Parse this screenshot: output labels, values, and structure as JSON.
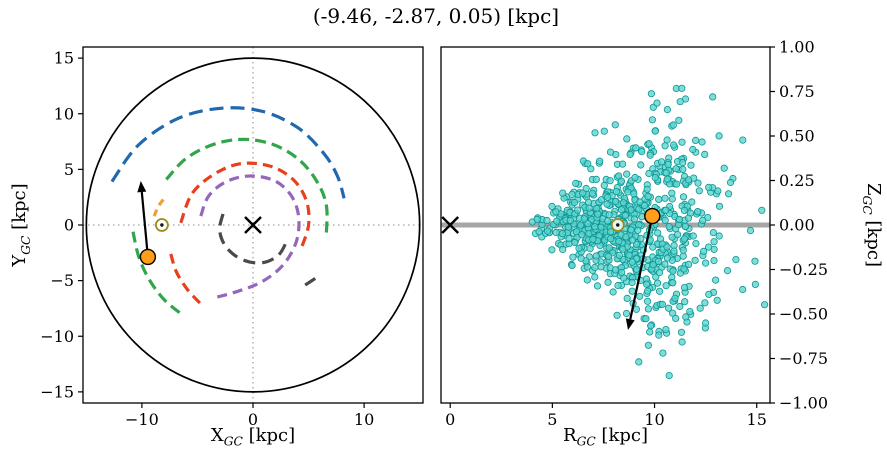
{
  "title": "(-9.46, -2.87, 0.05) [kpc]",
  "axes": {
    "left": {
      "xlabel": {
        "main": "X",
        "sub": "GC",
        "unit": " [kpc]"
      },
      "ylabel": {
        "main": "Y",
        "sub": "GC",
        "unit": " [kpc]"
      }
    },
    "right": {
      "xlabel": {
        "main": "R",
        "sub": "GC",
        "unit": " [kpc]"
      },
      "ylabel": {
        "main": "Z",
        "sub": "GC",
        "unit": " [kpc]"
      }
    }
  },
  "chart_data": [
    {
      "type": "scatter",
      "name": "galactic-plane-top-view",
      "xlabel": "X_GC [kpc]",
      "ylabel": "Y_GC [kpc]",
      "xlim": [
        -15.3,
        15.3
      ],
      "ylim": [
        -16,
        16
      ],
      "xticks": [
        -10,
        0,
        10
      ],
      "yticks": [
        -15,
        -10,
        -5,
        0,
        5,
        10,
        15
      ],
      "tick_decimals": 0,
      "grid": "dotted zero-crosshair",
      "crosshair_color": "#8a8a8a",
      "boundary_circle": {
        "cx": 0,
        "cy": 0,
        "r": 15,
        "color": "#000000"
      },
      "spiral_arms": [
        {
          "name": "outer-arm",
          "color": "#2268ae",
          "dash": [
            14,
            7
          ],
          "width": 3.2,
          "points": [
            [
              -12.7,
              3.9
            ],
            [
              -10.3,
              7.2
            ],
            [
              -6.7,
              9.6
            ],
            [
              -2.8,
              10.5
            ],
            [
              0.9,
              10.2
            ],
            [
              4.1,
              8.7
            ],
            [
              6.4,
              6.4
            ],
            [
              7.6,
              4.4
            ],
            [
              8.2,
              2.4
            ]
          ]
        },
        {
          "name": "perseus-arm",
          "color": "#2fa64a",
          "dash": [
            11,
            6
          ],
          "width": 3.2,
          "points": [
            [
              -7.8,
              4.1
            ],
            [
              -6.0,
              6.0
            ],
            [
              -3.4,
              7.3
            ],
            [
              -0.7,
              7.7
            ],
            [
              1.9,
              7.2
            ],
            [
              4.1,
              5.9
            ],
            [
              5.7,
              4.0
            ],
            [
              6.6,
              1.8
            ],
            [
              6.6,
              -0.9
            ]
          ]
        },
        {
          "name": "perseus-arm-south",
          "color": "#2fa64a",
          "dash": [
            11,
            6
          ],
          "width": 3.2,
          "points": [
            [
              -10.8,
              -0.6
            ],
            [
              -10.3,
              -2.8
            ],
            [
              -9.4,
              -4.8
            ],
            [
              -8.1,
              -6.6
            ],
            [
              -6.6,
              -7.9
            ]
          ]
        },
        {
          "name": "sagittarius-arm",
          "color": "#e8401c",
          "dash": [
            10,
            6
          ],
          "width": 3.2,
          "points": [
            [
              -6.5,
              0.2
            ],
            [
              -5.5,
              2.8
            ],
            [
              -3.6,
              4.5
            ],
            [
              -1.2,
              5.5
            ],
            [
              1.5,
              5.3
            ],
            [
              3.6,
              4.1
            ],
            [
              4.8,
              2.2
            ],
            [
              5.0,
              0.0
            ],
            [
              4.3,
              -2.2
            ]
          ]
        },
        {
          "name": "sagittarius-arm-south",
          "color": "#e8401c",
          "dash": [
            10,
            6
          ],
          "width": 3.2,
          "points": [
            [
              -7.4,
              -2.6
            ],
            [
              -6.9,
              -4.2
            ],
            [
              -5.9,
              -5.8
            ],
            [
              -4.6,
              -7.2
            ]
          ]
        },
        {
          "name": "scutum-arm",
          "color": "#9467bd",
          "dash": [
            10,
            6
          ],
          "width": 3.2,
          "points": [
            [
              -4.7,
              0.8
            ],
            [
              -4.0,
              2.6
            ],
            [
              -2.4,
              3.9
            ],
            [
              -0.3,
              4.4
            ],
            [
              1.9,
              4.0
            ],
            [
              3.4,
              2.7
            ],
            [
              4.1,
              0.8
            ],
            [
              3.9,
              -1.5
            ],
            [
              2.7,
              -3.6
            ],
            [
              0.8,
              -5.1
            ],
            [
              -1.5,
              -6.0
            ],
            [
              -3.3,
              -6.5
            ]
          ]
        },
        {
          "name": "norma-arm",
          "color": "#4a4a4a",
          "dash": [
            12,
            7
          ],
          "width": 3.2,
          "points": [
            [
              -2.7,
              1.0
            ],
            [
              -3.0,
              -0.5
            ],
            [
              -2.4,
              -2.0
            ],
            [
              -1.0,
              -3.1
            ],
            [
              0.8,
              -3.4
            ],
            [
              2.3,
              -2.7
            ],
            [
              3.1,
              -1.3
            ]
          ]
        },
        {
          "name": "norma-arm-segment",
          "color": "#4a4a4a",
          "dash": [
            12,
            7
          ],
          "width": 3.2,
          "points": [
            [
              4.7,
              -5.4
            ],
            [
              5.9,
              -4.6
            ]
          ]
        },
        {
          "name": "local-arm",
          "color": "#f0a030",
          "dash": [
            7,
            5
          ],
          "width": 3.2,
          "points": [
            [
              -8.9,
              0.8
            ],
            [
              -8.5,
              1.7
            ],
            [
              -7.9,
              2.5
            ]
          ]
        }
      ],
      "galactic_center_marker": {
        "x": 0,
        "y": 0,
        "symbol": "x"
      },
      "sun_marker": {
        "x": -8.2,
        "y": 0,
        "symbol": "odot",
        "ring_color": "#9c8c1e"
      },
      "cluster_marker": {
        "x": -9.46,
        "y": -2.87,
        "color": "#ff9e1b"
      },
      "velocity_arrow": {
        "x1": -9.46,
        "y1": -2.87,
        "x2": -10.1,
        "y2": 3.95
      }
    },
    {
      "type": "scatter",
      "name": "radius-vs-height-view",
      "xlabel": "R_GC [kpc]",
      "ylabel": "Z_GC [kpc]",
      "xlim": [
        -0.45,
        15.65
      ],
      "ylim": [
        -1.0,
        1.0
      ],
      "xticks": [
        0,
        5,
        10,
        15
      ],
      "yticks": [
        1.0,
        0.75,
        0.5,
        0.25,
        0.0,
        -0.25,
        -0.5,
        -0.75,
        -1.0
      ],
      "x_tick_decimals": 0,
      "tick_decimals": 2,
      "grid": "off",
      "midplane_line": {
        "z": 0,
        "color": "#a6a6a6",
        "width": 5
      },
      "galactic_center_marker": {
        "x": 0,
        "y": 0,
        "symbol": "x"
      },
      "sun_marker": {
        "x": 8.2,
        "y": 0,
        "symbol": "odot",
        "ring_color": "#9c8c1e"
      },
      "cluster_marker": {
        "x": 9.89,
        "y": 0.05,
        "color": "#ff9e1b"
      },
      "velocity_arrow": {
        "x1": 9.89,
        "y1": 0.05,
        "x2": 8.7,
        "y2": -0.59
      },
      "scatter_points": {
        "description": "simulated disc star particles (flared distribution read from figure)",
        "count": 750,
        "seed": 7,
        "R_mean": 8.9,
        "R_sigma": 2.1,
        "R_range": [
          4.0,
          15.6
        ],
        "Z_sigma_at_Rmin": 0.035,
        "Z_sigma_slope_per_kpc": 0.04,
        "Z_range": [
          -1.0,
          1.0
        ],
        "fill": "#5cd6d0",
        "edge": "#0f9493",
        "radius_px": 3.2,
        "opacity": 0.8
      }
    }
  ]
}
